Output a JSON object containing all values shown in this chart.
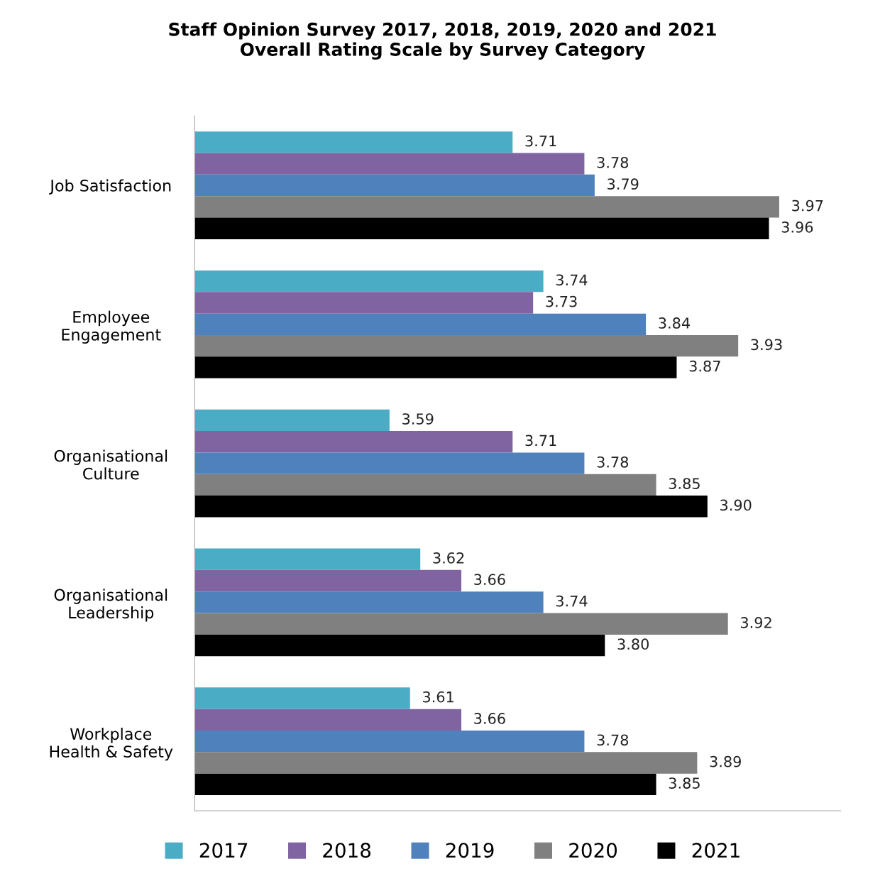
{
  "chart_data": {
    "type": "bar",
    "orientation": "horizontal",
    "title": "Staff Opinion Survey 2017, 2018, 2019, 2020 and 2021\nOverall Rating Scale by Survey Category",
    "categories": [
      "Job Satisfaction",
      "Employee\nEngagement",
      "Organisational\nCulture",
      "Organisational\nLeadership",
      "Workplace\nHealth & Safety"
    ],
    "series": [
      {
        "name": "2017",
        "color": "#4bacc6",
        "values": [
          3.71,
          3.74,
          3.59,
          3.62,
          3.61
        ],
        "value_labels": [
          "3.71",
          "3.74",
          "3.59",
          "3.62",
          "3.61"
        ]
      },
      {
        "name": "2018",
        "color": "#8064a2",
        "values": [
          3.78,
          3.73,
          3.71,
          3.66,
          3.66
        ],
        "value_labels": [
          "3.78",
          "3.73",
          "3.71",
          "3.66",
          "3.66"
        ]
      },
      {
        "name": "2019",
        "color": "#4f81bd",
        "values": [
          3.79,
          3.84,
          3.78,
          3.74,
          3.78
        ],
        "value_labels": [
          "3.79",
          "3.84",
          "3.78",
          "3.74",
          "3.78"
        ]
      },
      {
        "name": "2020",
        "color": "#808080",
        "values": [
          3.97,
          3.93,
          3.85,
          3.92,
          3.89
        ],
        "value_labels": [
          "3.97",
          "3.93",
          "3.85",
          "3.92",
          "3.89"
        ]
      },
      {
        "name": "2021",
        "color": "#000000",
        "values": [
          3.96,
          3.87,
          3.9,
          3.8,
          3.85
        ],
        "value_labels": [
          "3.96",
          "3.87",
          "3.90",
          "3.80",
          "3.85"
        ]
      }
    ],
    "xlim": [
      3.4,
      4.03
    ],
    "legend": "bottom",
    "grid": false,
    "tick_labels": "y"
  }
}
